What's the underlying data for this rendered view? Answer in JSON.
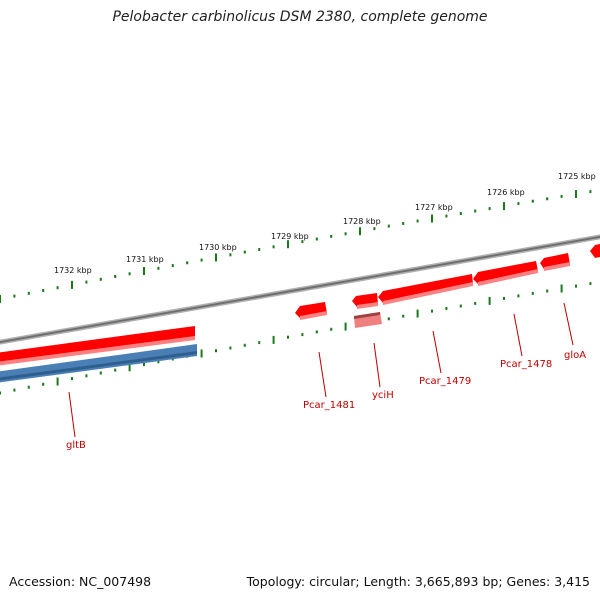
{
  "title": "Pelobacter carbinolicus DSM 2380, complete genome",
  "footer": {
    "accession": "Accession: NC_007498",
    "summary": "Topology: circular; Length: 3,665,893 bp; Genes: 3,415"
  },
  "scale_labels": [
    "1732 kbp",
    "1731 kbp",
    "1730 kbp",
    "1729 kbp",
    "1728 kbp",
    "1727 kbp",
    "1726 kbp",
    "1725 kbp"
  ],
  "genes": [
    {
      "name": "gltB",
      "strand": "forward",
      "color": "#ff0000"
    },
    {
      "name": "gltB",
      "strand": "cds",
      "color": "#4a7fb5"
    },
    {
      "name": "Pcar_1481",
      "strand": "forward",
      "color": "#ff0000"
    },
    {
      "name": "yciH",
      "strand": "forward",
      "color": "#ff0000"
    },
    {
      "name": "yciH",
      "strand": "rna",
      "color": "#f08080"
    },
    {
      "name": "Pcar_1479",
      "strand": "forward",
      "color": "#ff0000"
    },
    {
      "name": "Pcar_1478",
      "strand": "forward",
      "color": "#ff0000"
    },
    {
      "name": "gloA",
      "strand": "forward",
      "color": "#ff0000"
    }
  ],
  "colors": {
    "backbone": "#888888",
    "scale": "#1a7a1a",
    "label": "#c00000"
  }
}
